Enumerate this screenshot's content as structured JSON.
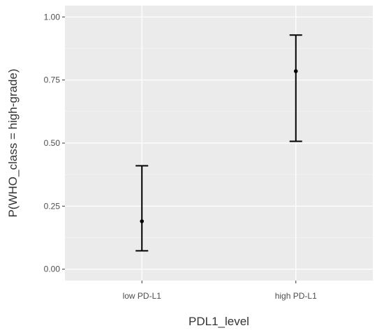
{
  "chart_data": {
    "type": "scatter",
    "categories": [
      "low PD-L1",
      "high PD-L1"
    ],
    "series": [
      {
        "estimate": [
          0.19,
          0.785
        ],
        "lower": [
          0.073,
          0.507
        ],
        "upper": [
          0.41,
          0.928
        ]
      }
    ],
    "xlabel": "PDL1_level",
    "ylabel": "P(WHO_class = high-grade)",
    "ylim": [
      -0.045,
      1.045
    ],
    "yticks": [
      0.0,
      0.25,
      0.5,
      0.75,
      1.0
    ],
    "ytick_labels": [
      "0.00",
      "0.25",
      "0.50",
      "0.75",
      "1.00"
    ],
    "grid": true,
    "colors": {
      "panel": "#ebebeb",
      "grid_major": "#ffffff",
      "mark": "#000000"
    }
  }
}
